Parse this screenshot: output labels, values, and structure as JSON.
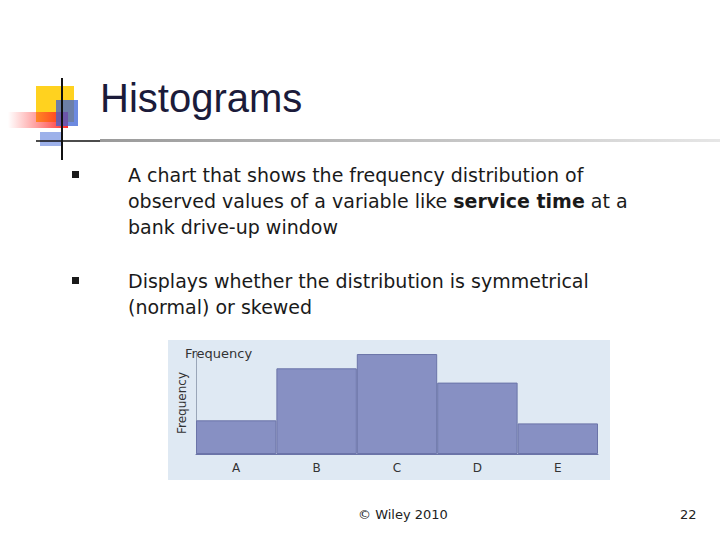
{
  "slide": {
    "title": "Histograms",
    "bullets": [
      {
        "text": "A chart that shows the frequency distribution of observed values of a variable like service time at a bank drive-up window",
        "bold": "service time"
      },
      {
        "text": "Displays whether the distribution is symmetrical (normal) or skewed"
      }
    ],
    "footer": "© Wiley 2010",
    "page_number": 22
  },
  "chart_data": {
    "type": "bar",
    "title": "Frequency",
    "y_label": "Frequency",
    "categories": [
      "A",
      "B",
      "C",
      "D",
      "E"
    ],
    "values": [
      33,
      84,
      98,
      70,
      30
    ],
    "color": "#8790c3",
    "ylim": [
      0,
      100
    ],
    "tick_labels": "x",
    "grid": false
  }
}
